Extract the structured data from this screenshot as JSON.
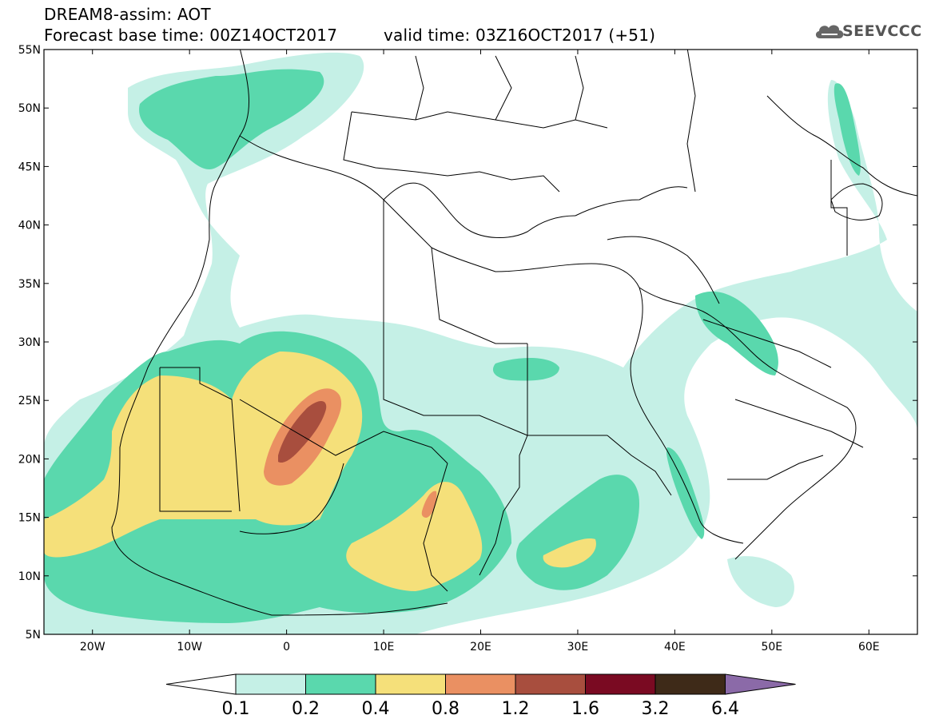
{
  "header": {
    "title_line": "DREAM8-assim: AOT",
    "base_time": "Forecast base time: 00Z14OCT2017",
    "valid_time": "valid time: 03Z16OCT2017 (+51)",
    "logo_text": "SEEVCCC"
  },
  "map": {
    "lat_labels": [
      "55N",
      "50N",
      "45N",
      "40N",
      "35N",
      "30N",
      "25N",
      "20N",
      "15N",
      "10N",
      "5N"
    ],
    "lon_labels": [
      "20W",
      "10W",
      "0",
      "10E",
      "20E",
      "30E",
      "40E",
      "50E",
      "60E"
    ],
    "lat_range": [
      5,
      55
    ],
    "lon_range": [
      -25,
      65
    ],
    "field": "Aerosol optical thickness (dust)"
  },
  "colorbar": {
    "labels": [
      "0.1",
      "0.2",
      "0.4",
      "0.8",
      "1.2",
      "1.6",
      "3.2",
      "6.4"
    ],
    "colors": [
      "#ffffff",
      "#c5f0e6",
      "#5ad8ad",
      "#f5e07a",
      "#ea9062",
      "#a84e3e",
      "#7a0a22",
      "#3e2a18",
      "#8b6aa8"
    ]
  }
}
